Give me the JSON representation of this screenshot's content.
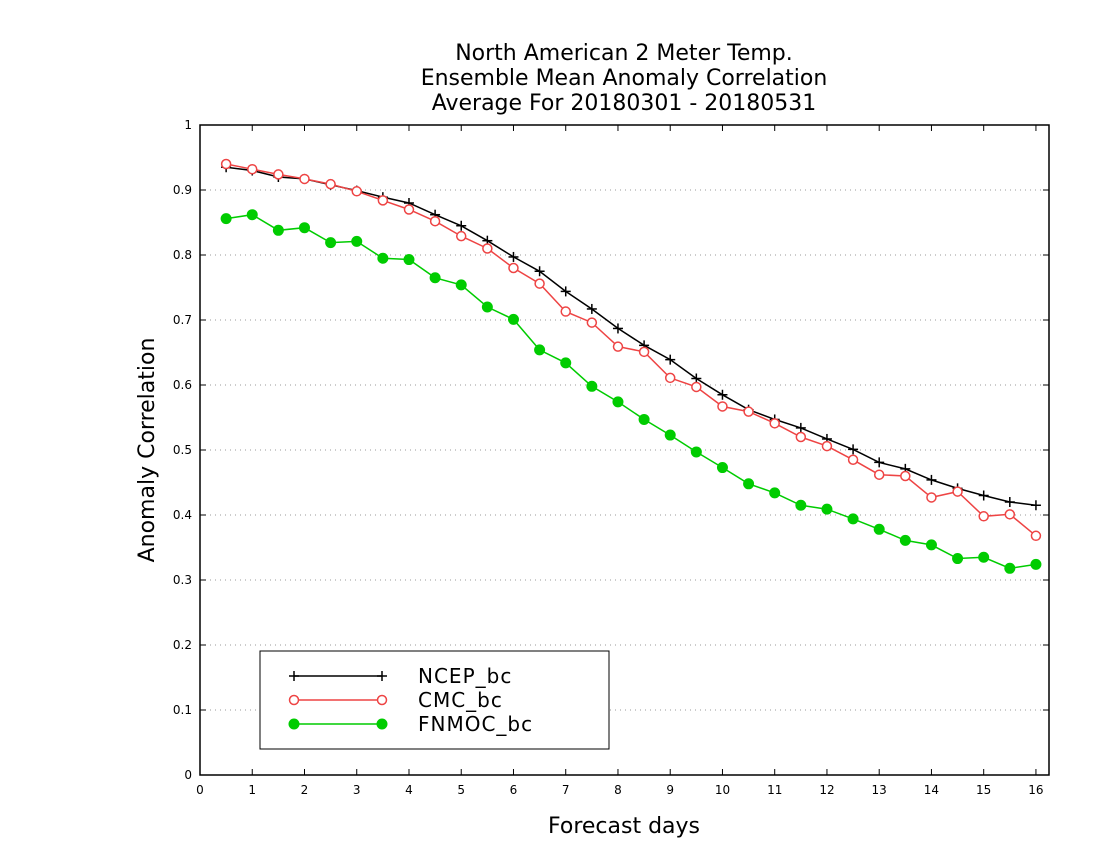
{
  "chart_data": {
    "type": "line",
    "title": [
      "North American 2 Meter Temp.",
      "Ensemble Mean Anomaly Correlation",
      "Average For 20180301 - 20180531"
    ],
    "xlabel": "Forecast days",
    "ylabel": "Anomaly Correlation",
    "xlim": [
      0,
      16.25
    ],
    "ylim": [
      0,
      1
    ],
    "xticks": [
      0,
      1,
      2,
      3,
      4,
      5,
      6,
      7,
      8,
      9,
      10,
      11,
      12,
      13,
      14,
      15,
      16
    ],
    "yticks": [
      0,
      0.1,
      0.2,
      0.3,
      0.4,
      0.5,
      0.6,
      0.7,
      0.8,
      0.9,
      1
    ],
    "ytick_labels": [
      "0",
      "0.1",
      "0.2",
      "0.3",
      "0.4",
      "0.5",
      "0.6",
      "0.7",
      "0.8",
      "0.9",
      "1"
    ],
    "grid": "horizontal-dotted",
    "legend_position": "bottom-left",
    "x": [
      0.5,
      1,
      1.5,
      2,
      2.5,
      3,
      3.5,
      4,
      4.5,
      5,
      5.5,
      6,
      6.5,
      7,
      7.5,
      8,
      8.5,
      9,
      9.5,
      10,
      10.5,
      11,
      11.5,
      12,
      12.5,
      13,
      13.5,
      14,
      14.5,
      15,
      15.5,
      16
    ],
    "series": [
      {
        "name": "NCEP_bc",
        "color": "#000000",
        "marker": "plus",
        "values": [
          0.935,
          0.93,
          0.92,
          0.917,
          0.908,
          0.899,
          0.889,
          0.88,
          0.862,
          0.845,
          0.822,
          0.797,
          0.775,
          0.744,
          0.717,
          0.687,
          0.661,
          0.639,
          0.61,
          0.585,
          0.562,
          0.547,
          0.534,
          0.517,
          0.501,
          0.481,
          0.471,
          0.454,
          0.441,
          0.43,
          0.42,
          0.415
        ]
      },
      {
        "name": "CMC_bc",
        "color": "#ee4444",
        "marker": "open-circle",
        "values": [
          0.94,
          0.932,
          0.924,
          0.917,
          0.909,
          0.898,
          0.884,
          0.87,
          0.852,
          0.829,
          0.81,
          0.78,
          0.756,
          0.713,
          0.696,
          0.659,
          0.651,
          0.611,
          0.597,
          0.567,
          0.559,
          0.541,
          0.52,
          0.506,
          0.485,
          0.462,
          0.46,
          0.427,
          0.436,
          0.398,
          0.401,
          0.368
        ]
      },
      {
        "name": "FNMOC_bc",
        "color": "#00cc00",
        "marker": "filled-circle",
        "values": [
          0.856,
          0.862,
          0.838,
          0.842,
          0.819,
          0.821,
          0.795,
          0.793,
          0.765,
          0.754,
          0.72,
          0.701,
          0.654,
          0.634,
          0.598,
          0.574,
          0.547,
          0.523,
          0.497,
          0.473,
          0.448,
          0.434,
          0.415,
          0.409,
          0.394,
          0.378,
          0.361,
          0.354,
          0.333,
          0.335,
          0.318,
          0.324
        ]
      }
    ]
  }
}
